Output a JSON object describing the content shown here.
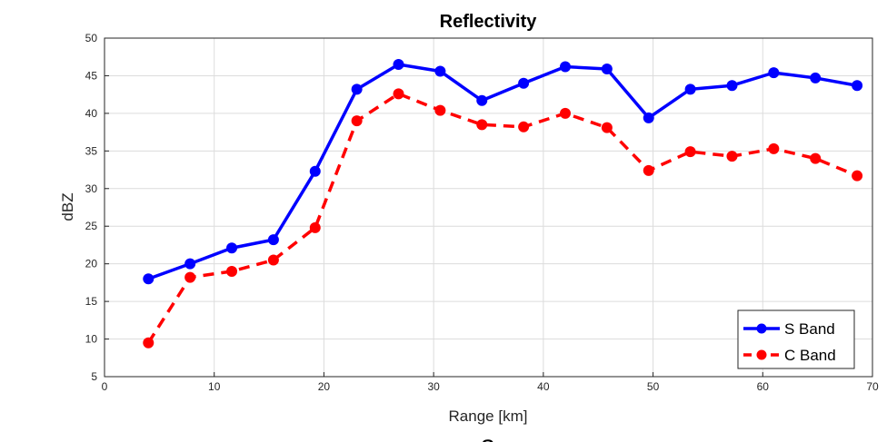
{
  "chart_data": {
    "type": "line",
    "title": "Reflectivity",
    "xlabel": "Range [km]",
    "ylabel": "dBZ",
    "xlim": [
      0,
      70
    ],
    "ylim": [
      5,
      50
    ],
    "xticks": [
      0,
      10,
      20,
      30,
      40,
      50,
      60,
      70
    ],
    "yticks": [
      5,
      10,
      15,
      20,
      25,
      30,
      35,
      40,
      45,
      50
    ],
    "grid": true,
    "legend_position": "bottom-right",
    "x": [
      4,
      7.8,
      11.6,
      15.4,
      19.2,
      23,
      26.8,
      30.6,
      34.4,
      38.2,
      42,
      45.8,
      49.6,
      53.4,
      57.2,
      61,
      64.8,
      68.6
    ],
    "series": [
      {
        "name": "S Band",
        "color": "#0000ff",
        "line_style": "solid",
        "marker": "circle",
        "values": [
          18.0,
          20.0,
          22.1,
          23.2,
          32.3,
          43.2,
          46.5,
          45.6,
          41.7,
          44.0,
          46.2,
          45.9,
          39.4,
          43.2,
          43.7,
          45.4,
          44.7,
          43.7
        ]
      },
      {
        "name": "C Band",
        "color": "#ff0000",
        "line_style": "dashed",
        "marker": "circle",
        "values": [
          9.5,
          18.2,
          19.0,
          20.5,
          24.8,
          39.0,
          42.6,
          40.4,
          38.5,
          38.2,
          40.0,
          38.1,
          32.4,
          34.9,
          34.3,
          35.3,
          34.0,
          31.7
        ]
      }
    ]
  },
  "footer_text": "a"
}
